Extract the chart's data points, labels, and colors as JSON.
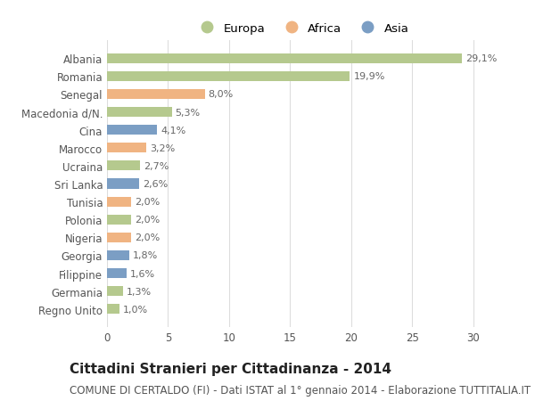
{
  "countries": [
    "Albania",
    "Romania",
    "Senegal",
    "Macedonia d/N.",
    "Cina",
    "Marocco",
    "Ucraina",
    "Sri Lanka",
    "Tunisia",
    "Polonia",
    "Nigeria",
    "Georgia",
    "Filippine",
    "Germania",
    "Regno Unito"
  ],
  "values": [
    29.1,
    19.9,
    8.0,
    5.3,
    4.1,
    3.2,
    2.7,
    2.6,
    2.0,
    2.0,
    2.0,
    1.8,
    1.6,
    1.3,
    1.0
  ],
  "labels": [
    "29,1%",
    "19,9%",
    "8,0%",
    "5,3%",
    "4,1%",
    "3,2%",
    "2,7%",
    "2,6%",
    "2,0%",
    "2,0%",
    "2,0%",
    "1,8%",
    "1,6%",
    "1,3%",
    "1,0%"
  ],
  "continents": [
    "Europa",
    "Europa",
    "Africa",
    "Europa",
    "Asia",
    "Africa",
    "Europa",
    "Asia",
    "Africa",
    "Europa",
    "Africa",
    "Asia",
    "Asia",
    "Europa",
    "Europa"
  ],
  "colors": {
    "Europa": "#b5c98e",
    "Africa": "#f0b482",
    "Asia": "#7b9ec4"
  },
  "xlim": [
    0,
    32
  ],
  "xticks": [
    0,
    5,
    10,
    15,
    20,
    25,
    30
  ],
  "title": "Cittadini Stranieri per Cittadinanza - 2014",
  "subtitle": "COMUNE DI CERTALDO (FI) - Dati ISTAT al 1° gennaio 2014 - Elaborazione TUTTITALIA.IT",
  "background_color": "#ffffff",
  "grid_color": "#dddddd",
  "bar_height": 0.55,
  "title_fontsize": 11,
  "subtitle_fontsize": 8.5,
  "label_fontsize": 8,
  "tick_fontsize": 8.5,
  "legend_fontsize": 9.5
}
